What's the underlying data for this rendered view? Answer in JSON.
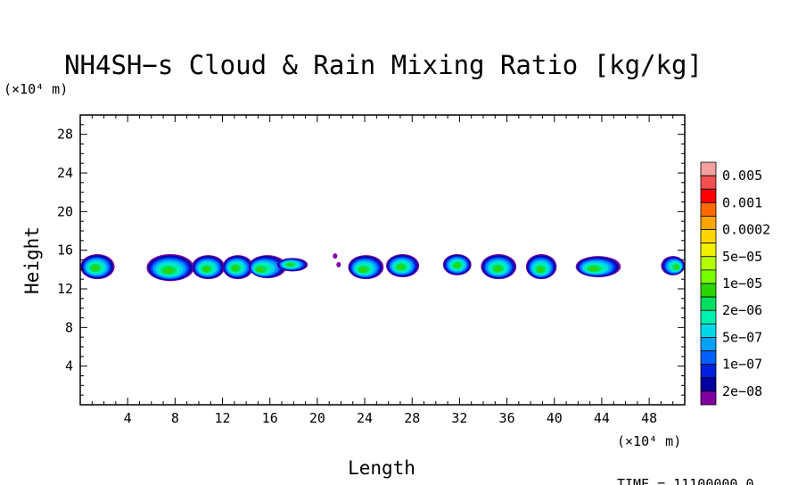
{
  "chart_data": {
    "type": "heatmap",
    "title": "NH4SH−s Cloud & Rain Mixing Ratio [kg/kg]",
    "xlabel": "Length",
    "ylabel": "Height",
    "x_unit_label": "(×10⁴ m)",
    "y_unit_label": "(×10⁴ m)",
    "xlim": [
      0,
      51
    ],
    "ylim": [
      0,
      30
    ],
    "x_ticks": [
      4,
      8,
      12,
      16,
      20,
      24,
      28,
      32,
      36,
      40,
      44,
      48
    ],
    "y_ticks": [
      4,
      8,
      12,
      16,
      20,
      24,
      28
    ],
    "time_label": "TIME = 11100000.0",
    "colorbar": {
      "labels": [
        "0.005",
        "0.001",
        "0.0002",
        "5e−05",
        "1e−05",
        "2e−06",
        "5e−07",
        "1e−07",
        "2e−08"
      ],
      "colors_top_to_bottom": [
        "#f4a0a0",
        "#f05050",
        "#ff0000",
        "#ff6a00",
        "#ffa500",
        "#ffd700",
        "#f0f000",
        "#b4ff00",
        "#78ff00",
        "#2cd400",
        "#00e060",
        "#00f0b0",
        "#00d8e8",
        "#00a0ff",
        "#0060ff",
        "#0020e0",
        "#0000a0",
        "#8000a0"
      ]
    },
    "cloud_cells": [
      {
        "x0": 0.0,
        "x1": 2.9,
        "y0": 13.0,
        "y1": 15.6,
        "core_x": 1.2,
        "core_y": 14.1
      },
      {
        "x0": 5.6,
        "x1": 9.6,
        "y0": 12.8,
        "y1": 15.6,
        "core_x": 7.4,
        "core_y": 13.8
      },
      {
        "x0": 9.4,
        "x1": 12.2,
        "y0": 13.0,
        "y1": 15.5,
        "core_x": 10.6,
        "core_y": 14.0
      },
      {
        "x0": 12.0,
        "x1": 14.6,
        "y0": 13.0,
        "y1": 15.5,
        "core_x": 13.0,
        "core_y": 14.1
      },
      {
        "x0": 14.2,
        "x1": 17.4,
        "y0": 13.1,
        "y1": 15.5,
        "core_x": 15.0,
        "core_y": 13.9
      },
      {
        "x0": 16.6,
        "x1": 19.2,
        "y0": 13.8,
        "y1": 15.2,
        "core_x": 17.6,
        "core_y": 14.5
      },
      {
        "x0": 22.6,
        "x1": 25.6,
        "y0": 13.0,
        "y1": 15.5,
        "core_x": 23.8,
        "core_y": 13.9
      },
      {
        "x0": 25.8,
        "x1": 28.6,
        "y0": 13.2,
        "y1": 15.6,
        "core_x": 27.0,
        "core_y": 14.2
      },
      {
        "x0": 30.6,
        "x1": 33.0,
        "y0": 13.4,
        "y1": 15.6,
        "core_x": 31.8,
        "core_y": 14.4
      },
      {
        "x0": 33.8,
        "x1": 36.8,
        "y0": 13.0,
        "y1": 15.6,
        "core_x": 35.2,
        "core_y": 14.0
      },
      {
        "x0": 37.6,
        "x1": 40.2,
        "y0": 13.0,
        "y1": 15.6,
        "core_x": 38.8,
        "core_y": 13.9
      },
      {
        "x0": 41.8,
        "x1": 45.6,
        "y0": 13.2,
        "y1": 15.4,
        "core_x": 43.2,
        "core_y": 14.0
      },
      {
        "x0": 49.0,
        "x1": 51.0,
        "y0": 13.4,
        "y1": 15.4,
        "core_x": 50.4,
        "core_y": 14.2
      }
    ],
    "stray_fragments": [
      {
        "x": 21.8,
        "y": 14.5
      },
      {
        "x": 21.5,
        "y": 15.4
      }
    ]
  }
}
